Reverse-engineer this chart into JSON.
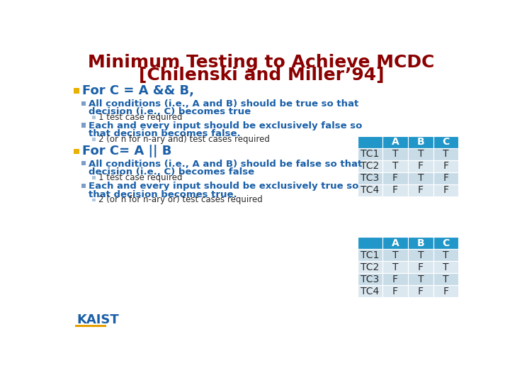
{
  "title_line1": "Minimum Testing to Achieve MCDC",
  "title_line2": "[Chilenski and Miller’94]",
  "title_color": "#8B0000",
  "bg_color": "#FFFFFF",
  "yellow_bullet": "#E8B000",
  "blue_bullet": "#7B9DC8",
  "small_bullet": "#B0C8DC",
  "text_blue": "#1a5fa8",
  "text_dark": "#2a2a2a",
  "table_header_bg": "#2196C8",
  "table_row1_bg": "#C8DCE8",
  "table_row2_bg": "#DCE8F0",
  "table_row3_bg": "#C8DCE8",
  "table_row4_bg": "#DCE8F0",
  "table_header_fg": "#FFFFFF",
  "table1_data": [
    [
      "",
      "A",
      "B",
      "C"
    ],
    [
      "TC1",
      "T",
      "T",
      "T"
    ],
    [
      "TC2",
      "T",
      "F",
      "F"
    ],
    [
      "TC3",
      "F",
      "T",
      "F"
    ],
    [
      "TC4",
      "F",
      "F",
      "F"
    ]
  ],
  "table2_data": [
    [
      "",
      "A",
      "B",
      "C"
    ],
    [
      "TC1",
      "T",
      "T",
      "T"
    ],
    [
      "TC2",
      "T",
      "F",
      "T"
    ],
    [
      "TC3",
      "F",
      "T",
      "T"
    ],
    [
      "TC4",
      "F",
      "F",
      "F"
    ]
  ],
  "s1_main": "For C = A && B,",
  "s1_b1_l1": "All conditions (i.e., A and B) should be true so that",
  "s1_b1_l2": "decision (i.e., C) becomes true",
  "s1_b1_note": "1 test case required",
  "s1_b2_l1": "Each and every input should be exclusively false so",
  "s1_b2_l2": "that decision becomes false.",
  "s1_b2_note": "2 (or n for n-ary and) test cases required",
  "s2_main": "For C= A || B",
  "s2_b1_l1": "All conditions (i.e., A and B) should be false so that",
  "s2_b1_l2": "decision (i.e., C) becomes false",
  "s2_b1_note": "1 test case required",
  "s2_b2_l1": "Each and every input should be exclusively true so",
  "s2_b2_l2": "that decision becomes true.",
  "s2_b2_note": "2 (or n for n-ary or) test cases required",
  "kaist_text": "KAIST",
  "kaist_color": "#1a5fa8",
  "kaist_bar_color": "#E8A000"
}
